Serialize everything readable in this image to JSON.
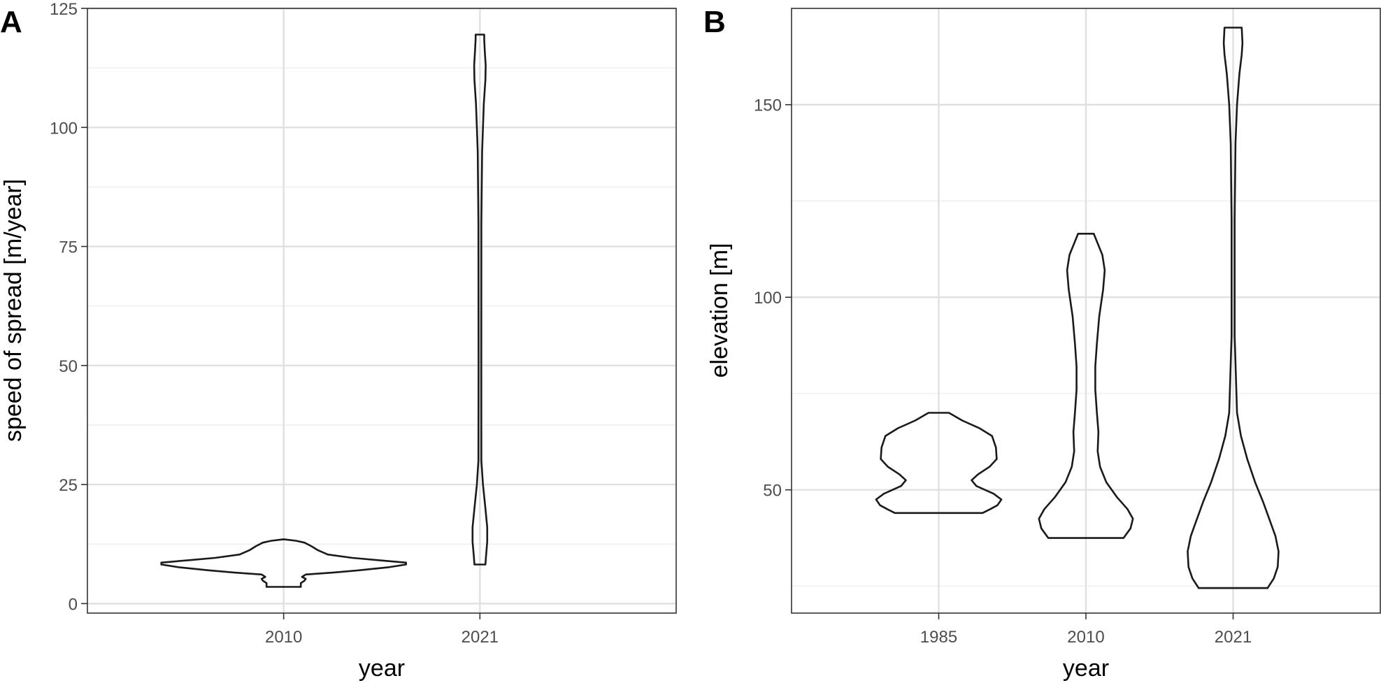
{
  "colors": {
    "violin_outline": "#1a1a1a",
    "grid": "#e0e0e0",
    "panel_border": "#333333",
    "background": "#ffffff"
  },
  "chart_data": [
    {
      "panel": "A",
      "type": "violin",
      "title": "",
      "xlabel": "year",
      "ylabel": "speed of spread [m/year]",
      "categories": [
        "2010",
        "2021"
      ],
      "ylim": [
        -2,
        125
      ],
      "yticks": [
        0,
        25,
        50,
        75,
        100,
        125
      ],
      "ytick_labels": [
        "0",
        "25",
        "50",
        "75",
        "100",
        "125"
      ],
      "grid": true,
      "violins": [
        {
          "category": "2010",
          "min": 3.5,
          "max": 13.5,
          "profile": [
            [
              3.5,
              0.14
            ],
            [
              4.3,
              0.14
            ],
            [
              4.8,
              0.17
            ],
            [
              5.2,
              0.18
            ],
            [
              5.6,
              0.15
            ],
            [
              6.1,
              0.18
            ],
            [
              6.5,
              0.4
            ],
            [
              7.0,
              0.62
            ],
            [
              7.6,
              0.85
            ],
            [
              8.2,
              1.0
            ],
            [
              8.6,
              1.0
            ],
            [
              9.1,
              0.78
            ],
            [
              9.6,
              0.56
            ],
            [
              10.3,
              0.36
            ],
            [
              11.2,
              0.28
            ],
            [
              12.0,
              0.23
            ],
            [
              12.8,
              0.17
            ],
            [
              13.2,
              0.1
            ],
            [
              13.5,
              0.0
            ]
          ]
        },
        {
          "category": "2021",
          "min": 8.2,
          "max": 119.5,
          "profile": [
            [
              8.2,
              0.045
            ],
            [
              10.0,
              0.05
            ],
            [
              13.0,
              0.06
            ],
            [
              16.0,
              0.06
            ],
            [
              20.0,
              0.045
            ],
            [
              25.0,
              0.025
            ],
            [
              30.0,
              0.012
            ],
            [
              50.0,
              0.011
            ],
            [
              80.0,
              0.012
            ],
            [
              95.0,
              0.018
            ],
            [
              100.0,
              0.025
            ],
            [
              105.0,
              0.032
            ],
            [
              110.0,
              0.045
            ],
            [
              113.0,
              0.047
            ],
            [
              116.0,
              0.04
            ],
            [
              118.5,
              0.035
            ],
            [
              119.5,
              0.035
            ]
          ]
        }
      ]
    },
    {
      "panel": "B",
      "type": "violin",
      "title": "",
      "xlabel": "year",
      "ylabel": "elevation [m]",
      "categories": [
        "1985",
        "2010",
        "2021"
      ],
      "ylim": [
        18,
        175
      ],
      "yticks": [
        50,
        100,
        150
      ],
      "ytick_labels": [
        "50",
        "100",
        "150"
      ],
      "grid": true,
      "violins": [
        {
          "category": "1985",
          "min": 44.0,
          "max": 70.0,
          "profile": [
            [
              44.0,
              0.56
            ],
            [
              45.0,
              0.66
            ],
            [
              46.0,
              0.75
            ],
            [
              47.5,
              0.8
            ],
            [
              49.0,
              0.7
            ],
            [
              51.0,
              0.48
            ],
            [
              52.5,
              0.42
            ],
            [
              54.0,
              0.5
            ],
            [
              56.0,
              0.65
            ],
            [
              58.0,
              0.74
            ],
            [
              61.0,
              0.73
            ],
            [
              64.0,
              0.68
            ],
            [
              66.0,
              0.52
            ],
            [
              68.0,
              0.3
            ],
            [
              70.0,
              0.13
            ]
          ]
        },
        {
          "category": "2010",
          "min": 37.5,
          "max": 116.5,
          "profile": [
            [
              37.5,
              0.48
            ],
            [
              40.0,
              0.57
            ],
            [
              42.5,
              0.6
            ],
            [
              45.0,
              0.53
            ],
            [
              48.0,
              0.4
            ],
            [
              52.0,
              0.26
            ],
            [
              56.0,
              0.18
            ],
            [
              60.0,
              0.15
            ],
            [
              65.0,
              0.16
            ],
            [
              70.0,
              0.14
            ],
            [
              76.0,
              0.12
            ],
            [
              82.0,
              0.12
            ],
            [
              88.0,
              0.14
            ],
            [
              95.0,
              0.17
            ],
            [
              102.0,
              0.22
            ],
            [
              107.0,
              0.24
            ],
            [
              111.0,
              0.21
            ],
            [
              114.0,
              0.15
            ],
            [
              116.5,
              0.1
            ]
          ]
        },
        {
          "category": "2021",
          "min": 24.5,
          "max": 170.0,
          "profile": [
            [
              24.5,
              0.44
            ],
            [
              27.0,
              0.52
            ],
            [
              30.0,
              0.57
            ],
            [
              34.0,
              0.58
            ],
            [
              38.0,
              0.54
            ],
            [
              42.0,
              0.47
            ],
            [
              47.0,
              0.38
            ],
            [
              52.0,
              0.28
            ],
            [
              58.0,
              0.18
            ],
            [
              64.0,
              0.1
            ],
            [
              70.0,
              0.05
            ],
            [
              90.0,
              0.02
            ],
            [
              120.0,
              0.02
            ],
            [
              140.0,
              0.03
            ],
            [
              150.0,
              0.05
            ],
            [
              158.0,
              0.08
            ],
            [
              163.0,
              0.11
            ],
            [
              166.0,
              0.12
            ],
            [
              170.0,
              0.11
            ]
          ]
        }
      ]
    }
  ]
}
